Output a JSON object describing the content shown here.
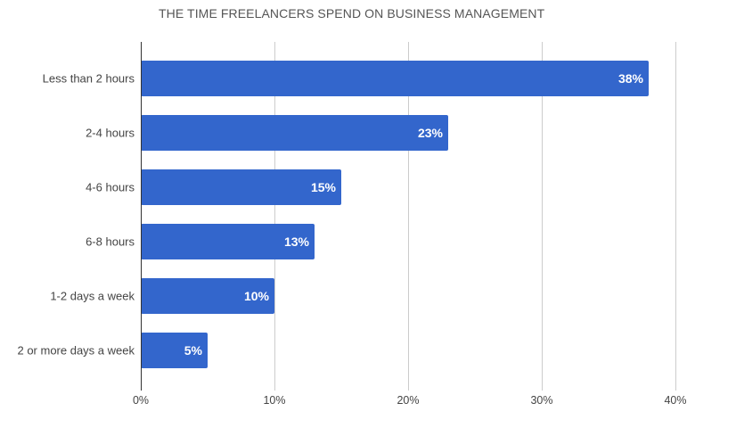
{
  "chart_data": {
    "type": "bar",
    "orientation": "horizontal",
    "title": "THE TIME FREELANCERS SPEND ON BUSINESS MANAGEMENT",
    "xlabel": "",
    "ylabel": "",
    "categories": [
      "Less than 2 hours",
      "2-4 hours",
      "4-6 hours",
      "6-8 hours",
      "1-2 days a week",
      "2 or more days a week"
    ],
    "values": [
      38,
      23,
      15,
      13,
      10,
      5
    ],
    "value_labels": [
      "38%",
      "23%",
      "15%",
      "13%",
      "10%",
      "5%"
    ],
    "xlim": [
      0,
      40
    ],
    "x_ticks": [
      0,
      10,
      20,
      30,
      40
    ],
    "x_tick_labels": [
      "0%",
      "10%",
      "20%",
      "30%",
      "40%"
    ],
    "grid": true,
    "legend": "none",
    "bar_color": "#3366cc",
    "grid_color": "#cccccc",
    "axis_color": "#333333"
  }
}
